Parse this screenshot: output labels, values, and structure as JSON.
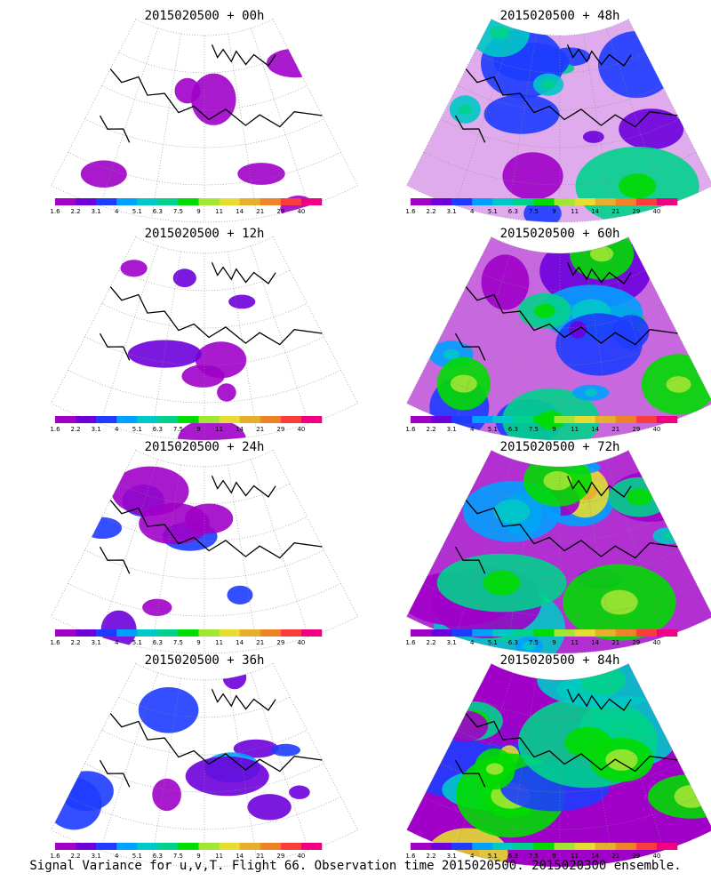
{
  "panels": [
    {
      "title": "2015020500 + 00h",
      "level": 0.02,
      "seed": 1
    },
    {
      "title": "2015020500 + 48h",
      "level": 0.5,
      "seed": 7
    },
    {
      "title": "2015020500 + 12h",
      "level": 0.1,
      "seed": 2
    },
    {
      "title": "2015020500 + 60h",
      "level": 0.62,
      "seed": 8
    },
    {
      "title": "2015020500 + 24h",
      "level": 0.2,
      "seed": 3
    },
    {
      "title": "2015020500 + 72h",
      "level": 0.72,
      "seed": 9
    },
    {
      "title": "2015020500 + 36h",
      "level": 0.32,
      "seed": 4
    },
    {
      "title": "2015020500 + 84h",
      "level": 0.85,
      "seed": 10
    }
  ],
  "colorbar": {
    "labels": [
      "1.6",
      "2.2",
      "3.1",
      "4",
      "5.1",
      "6.3",
      "7.5",
      "9",
      "11",
      "14",
      "21",
      "29",
      "40"
    ],
    "colors": [
      "#a000c8",
      "#6e00dc",
      "#1e3cff",
      "#00a0ff",
      "#00c8c8",
      "#00d28c",
      "#00dc00",
      "#a0e632",
      "#e6dc32",
      "#e6af2d",
      "#f08228",
      "#fa3c3c",
      "#f00082"
    ]
  },
  "caption": "Signal Variance for u,v,T. Flight 66. Observation time 2015020500. 2015020300 ensemble."
}
